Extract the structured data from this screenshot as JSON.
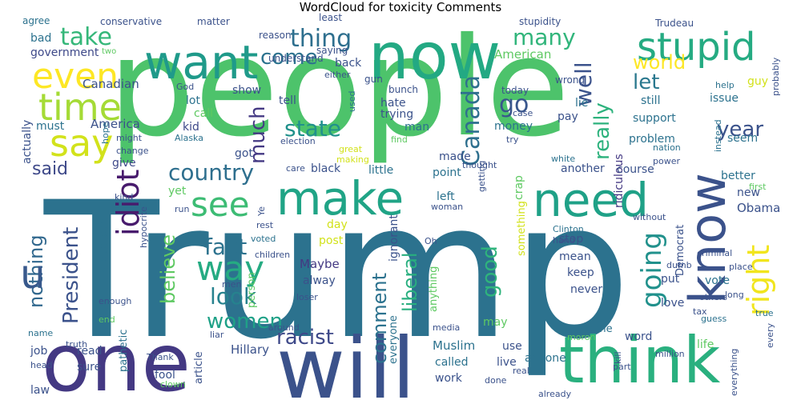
{
  "chart_data": {
    "type": "wordcloud",
    "title": "WordCloud for toxicity Comments",
    "background": "#ffffff",
    "words": [
      {
        "text": "people",
        "weight": 100,
        "color": "#4dc36b"
      },
      {
        "text": "Trump",
        "weight": 98,
        "color": "#2c728e"
      },
      {
        "text": "one",
        "weight": 62,
        "color": "#443983"
      },
      {
        "text": "will",
        "weight": 58,
        "color": "#3b528b"
      },
      {
        "text": "now",
        "weight": 50,
        "color": "#23a983"
      },
      {
        "text": "think",
        "weight": 44,
        "color": "#2ab07f"
      },
      {
        "text": "want",
        "weight": 40,
        "color": "#1f9a8a"
      },
      {
        "text": "make",
        "weight": 34,
        "color": "#20a486"
      },
      {
        "text": "need",
        "weight": 34,
        "color": "#1fa187"
      },
      {
        "text": "know",
        "weight": 34,
        "color": "#3b528b"
      },
      {
        "text": "stupid",
        "weight": 28,
        "color": "#25ab82"
      },
      {
        "text": "time",
        "weight": 26,
        "color": "#a5db36"
      },
      {
        "text": "say",
        "weight": 26,
        "color": "#d2e21b"
      },
      {
        "text": "even",
        "weight": 24,
        "color": "#fde725"
      },
      {
        "text": "see",
        "weight": 24,
        "color": "#3dbc74"
      },
      {
        "text": "way",
        "weight": 24,
        "color": "#25ab82"
      },
      {
        "text": "right",
        "weight": 22,
        "color": "#f1e51d"
      },
      {
        "text": "idiot",
        "weight": 22,
        "color": "#481b6d"
      },
      {
        "text": "going",
        "weight": 20,
        "color": "#21918c"
      },
      {
        "text": "take",
        "weight": 17,
        "color": "#35b779"
      },
      {
        "text": "thing",
        "weight": 17,
        "color": "#2e6f8e"
      },
      {
        "text": "come",
        "weight": 16,
        "color": "#2c728e"
      },
      {
        "text": "many",
        "weight": 16,
        "color": "#31b57b"
      },
      {
        "text": "world",
        "weight": 15,
        "color": "#fde725"
      },
      {
        "text": "Canada",
        "weight": 16,
        "color": "#2e6f8e"
      },
      {
        "text": "well",
        "weight": 16,
        "color": "#3b528b"
      },
      {
        "text": "go",
        "weight": 17,
        "color": "#39568c"
      },
      {
        "text": "let",
        "weight": 15,
        "color": "#2a788e"
      },
      {
        "text": "really",
        "weight": 15,
        "color": "#2db27d"
      },
      {
        "text": "state",
        "weight": 17,
        "color": "#21918c"
      },
      {
        "text": "much",
        "weight": 15,
        "color": "#443983"
      },
      {
        "text": "country",
        "weight": 17,
        "color": "#2e6f8e"
      },
      {
        "text": "year",
        "weight": 16,
        "color": "#3b528b"
      },
      {
        "text": "fact",
        "weight": 17,
        "color": "#2c728e"
      },
      {
        "text": "look",
        "weight": 17,
        "color": "#26828e"
      },
      {
        "text": "women",
        "weight": 16,
        "color": "#1fa187"
      },
      {
        "text": "President",
        "weight": 15,
        "color": "#3b528b"
      },
      {
        "text": "nothing",
        "weight": 14,
        "color": "#31688e"
      },
      {
        "text": "believe",
        "weight": 15,
        "color": "#5ec962"
      },
      {
        "text": "said",
        "weight": 13,
        "color": "#3e4989"
      },
      {
        "text": "racist",
        "weight": 15,
        "color": "#3e4989"
      },
      {
        "text": "comment",
        "weight": 14,
        "color": "#2c728e"
      },
      {
        "text": "liberal",
        "weight": 14,
        "color": "#29af7f"
      },
      {
        "text": "good",
        "weight": 15,
        "color": "#2fb47c"
      },
      {
        "text": "u",
        "weight": 30,
        "color": "#38598c"
      },
      {
        "text": "Canadian",
        "weight": 9,
        "color": "#3b528b"
      },
      {
        "text": "America",
        "weight": 9,
        "color": "#3b528b"
      },
      {
        "text": "American",
        "weight": 9,
        "color": "#5ec962"
      },
      {
        "text": "Hillary",
        "weight": 9,
        "color": "#3b528b"
      },
      {
        "text": "Muslim",
        "weight": 9,
        "color": "#2c728e"
      },
      {
        "text": "Obama",
        "weight": 9,
        "color": "#3b528b"
      },
      {
        "text": "Maybe",
        "weight": 9,
        "color": "#443983"
      },
      {
        "text": "ridiculous",
        "weight": 8,
        "color": "#443983"
      },
      {
        "text": "government",
        "weight": 8,
        "color": "#3e4989"
      },
      {
        "text": "actually",
        "weight": 8,
        "color": "#3b528b"
      },
      {
        "text": "bad",
        "weight": 8,
        "color": "#2c728e"
      },
      {
        "text": "must",
        "weight": 8,
        "color": "#2c728e"
      },
      {
        "text": "kid",
        "weight": 8,
        "color": "#3e4989"
      },
      {
        "text": "lot",
        "weight": 8,
        "color": "#2c728e"
      },
      {
        "text": "call",
        "weight": 8,
        "color": "#5ec962"
      },
      {
        "text": "back",
        "weight": 8,
        "color": "#3b528b"
      },
      {
        "text": "show",
        "weight": 8,
        "color": "#3b528b"
      },
      {
        "text": "tell",
        "weight": 8,
        "color": "#3b528b"
      },
      {
        "text": "hate",
        "weight": 8,
        "color": "#3b528b"
      },
      {
        "text": "trying",
        "weight": 8,
        "color": "#3b528b"
      },
      {
        "text": "man",
        "weight": 8,
        "color": "#2c728e"
      },
      {
        "text": "money",
        "weight": 8,
        "color": "#2c728e"
      },
      {
        "text": "pay",
        "weight": 8,
        "color": "#3b528b"
      },
      {
        "text": "lie",
        "weight": 8,
        "color": "#2c728e"
      },
      {
        "text": "still",
        "weight": 8,
        "color": "#2c728e"
      },
      {
        "text": "issue",
        "weight": 8,
        "color": "#2c728e"
      },
      {
        "text": "support",
        "weight": 8,
        "color": "#2c728e"
      },
      {
        "text": "problem",
        "weight": 8,
        "color": "#2c728e"
      },
      {
        "text": "seem",
        "weight": 8,
        "color": "#2c728e"
      },
      {
        "text": "guy",
        "weight": 8,
        "color": "#d2e21b"
      },
      {
        "text": "got",
        "weight": 8,
        "color": "#3b528b"
      },
      {
        "text": "give",
        "weight": 8,
        "color": "#3e4989"
      },
      {
        "text": "made",
        "weight": 8,
        "color": "#3b528b"
      },
      {
        "text": "crap",
        "weight": 8,
        "color": "#5ec962"
      },
      {
        "text": "black",
        "weight": 8,
        "color": "#3b528b"
      },
      {
        "text": "little",
        "weight": 8,
        "color": "#2c728e"
      },
      {
        "text": "point",
        "weight": 8,
        "color": "#2c728e"
      },
      {
        "text": "left",
        "weight": 8,
        "color": "#2c728e"
      },
      {
        "text": "another",
        "weight": 8,
        "color": "#3b528b"
      },
      {
        "text": "course",
        "weight": 8,
        "color": "#3b528b"
      },
      {
        "text": "better",
        "weight": 8,
        "color": "#2c728e"
      },
      {
        "text": "new",
        "weight": 8,
        "color": "#3b528b"
      },
      {
        "text": "yet",
        "weight": 8,
        "color": "#5ec962"
      },
      {
        "text": "day",
        "weight": 8,
        "color": "#d2e21b"
      },
      {
        "text": "post",
        "weight": 8,
        "color": "#d2e21b"
      },
      {
        "text": "alway",
        "weight": 8,
        "color": "#3b528b"
      },
      {
        "text": "ignorant",
        "weight": 8,
        "color": "#3b528b"
      },
      {
        "text": "something",
        "weight": 7,
        "color": "#d2e21b"
      },
      {
        "text": "stop",
        "weight": 8,
        "color": "#3b528b"
      },
      {
        "text": "mean",
        "weight": 8,
        "color": "#3b528b"
      },
      {
        "text": "keep",
        "weight": 8,
        "color": "#3b528b"
      },
      {
        "text": "never",
        "weight": 8,
        "color": "#3b528b"
      },
      {
        "text": "Democrat",
        "weight": 7,
        "color": "#3b528b"
      },
      {
        "text": "put",
        "weight": 8,
        "color": "#3b528b"
      },
      {
        "text": "vote",
        "weight": 8,
        "color": "#2c728e"
      },
      {
        "text": "love",
        "weight": 8,
        "color": "#3b528b"
      },
      {
        "text": "word",
        "weight": 8,
        "color": "#3b528b"
      },
      {
        "text": "life",
        "weight": 8,
        "color": "#5ec962"
      },
      {
        "text": "someone",
        "weight": 7,
        "color": "#2c728e"
      },
      {
        "text": "may",
        "weight": 8,
        "color": "#5ec962"
      },
      {
        "text": "use",
        "weight": 8,
        "color": "#3b528b"
      },
      {
        "text": "live",
        "weight": 8,
        "color": "#3b528b"
      },
      {
        "text": "anyone",
        "weight": 8,
        "color": "#2c728e"
      },
      {
        "text": "called",
        "weight": 8,
        "color": "#2c728e"
      },
      {
        "text": "work",
        "weight": 8,
        "color": "#3b528b"
      },
      {
        "text": "everyone",
        "weight": 7,
        "color": "#2c728e"
      },
      {
        "text": "anything",
        "weight": 7,
        "color": "#5ec962"
      },
      {
        "text": "fool",
        "weight": 8,
        "color": "#3b528b"
      },
      {
        "text": "article",
        "weight": 7,
        "color": "#3b528b"
      },
      {
        "text": "pathetic",
        "weight": 7,
        "color": "#2c728e"
      },
      {
        "text": "read",
        "weight": 8,
        "color": "#3b528b"
      },
      {
        "text": "sure",
        "weight": 8,
        "color": "#3b528b"
      },
      {
        "text": "job",
        "weight": 8,
        "color": "#3b528b"
      },
      {
        "text": "law",
        "weight": 8,
        "color": "#3b528b"
      },
      {
        "text": "Republican",
        "weight": 7,
        "color": "#2c728e"
      },
      {
        "text": "person",
        "weight": 7,
        "color": "#5ec962"
      },
      {
        "text": "agree",
        "weight": 6,
        "color": "#2c728e"
      },
      {
        "text": "conservative",
        "weight": 6,
        "color": "#3b528b"
      },
      {
        "text": "matter",
        "weight": 6,
        "color": "#3b528b"
      },
      {
        "text": "least",
        "weight": 6,
        "color": "#3b528b"
      },
      {
        "text": "stupidity",
        "weight": 6,
        "color": "#3b528b"
      },
      {
        "text": "Trudeau",
        "weight": 6,
        "color": "#3b528b"
      },
      {
        "text": "reason",
        "weight": 6,
        "color": "#3b528b"
      },
      {
        "text": "two",
        "weight": 5,
        "color": "#5ec962"
      },
      {
        "text": "saying",
        "weight": 6,
        "color": "#3b528b"
      },
      {
        "text": "understand",
        "weight": 6,
        "color": "#3b528b"
      },
      {
        "text": "either",
        "weight": 5,
        "color": "#3b528b"
      },
      {
        "text": "gun",
        "weight": 6,
        "color": "#3b528b"
      },
      {
        "text": "wrong",
        "weight": 6,
        "color": "#3b528b"
      },
      {
        "text": "God",
        "weight": 5,
        "color": "#3b528b"
      },
      {
        "text": "used",
        "weight": 5,
        "color": "#2c728e"
      },
      {
        "text": "bunch",
        "weight": 6,
        "color": "#3b528b"
      },
      {
        "text": "today",
        "weight": 6,
        "color": "#3b528b"
      },
      {
        "text": "case",
        "weight": 5,
        "color": "#3b528b"
      },
      {
        "text": "help",
        "weight": 5,
        "color": "#2c728e"
      },
      {
        "text": "probably",
        "weight": 5,
        "color": "#3b528b"
      },
      {
        "text": "might",
        "weight": 5,
        "color": "#3b528b"
      },
      {
        "text": "change",
        "weight": 5,
        "color": "#3b528b"
      },
      {
        "text": "Alaska",
        "weight": 5,
        "color": "#2c728e"
      },
      {
        "text": "election",
        "weight": 5,
        "color": "#3b528b"
      },
      {
        "text": "find",
        "weight": 5,
        "color": "#5ec962"
      },
      {
        "text": "try",
        "weight": 5,
        "color": "#3b528b"
      },
      {
        "text": "great",
        "weight": 5,
        "color": "#d2e21b"
      },
      {
        "text": "making",
        "weight": 5,
        "color": "#d2e21b"
      },
      {
        "text": "thought",
        "weight": 5,
        "color": "#3b528b"
      },
      {
        "text": "white",
        "weight": 5,
        "color": "#2c728e"
      },
      {
        "text": "nation",
        "weight": 5,
        "color": "#2c728e"
      },
      {
        "text": "power",
        "weight": 5,
        "color": "#3b528b"
      },
      {
        "text": "instead",
        "weight": 5,
        "color": "#2c728e"
      },
      {
        "text": "hope",
        "weight": 5,
        "color": "#2c728e"
      },
      {
        "text": "care",
        "weight": 5,
        "color": "#3b528b"
      },
      {
        "text": "getting",
        "weight": 5,
        "color": "#3b528b"
      },
      {
        "text": "first",
        "weight": 5,
        "color": "#5ec962"
      },
      {
        "text": "woman",
        "weight": 5,
        "color": "#3b528b"
      },
      {
        "text": "kind",
        "weight": 5,
        "color": "#3b528b"
      },
      {
        "text": "hypocrite",
        "weight": 5,
        "color": "#3b528b"
      },
      {
        "text": "run",
        "weight": 5,
        "color": "#3b528b"
      },
      {
        "text": "Ye",
        "weight": 5,
        "color": "#3b528b"
      },
      {
        "text": "rest",
        "weight": 5,
        "color": "#3b528b"
      },
      {
        "text": "voted",
        "weight": 5,
        "color": "#2c728e"
      },
      {
        "text": "without",
        "weight": 5,
        "color": "#3b528b"
      },
      {
        "text": "Oh",
        "weight": 5,
        "color": "#3b528b"
      },
      {
        "text": "Clinton",
        "weight": 5,
        "color": "#2c728e"
      },
      {
        "text": "hand",
        "weight": 5,
        "color": "#3b528b"
      },
      {
        "text": "children",
        "weight": 5,
        "color": "#3b528b"
      },
      {
        "text": "criminal",
        "weight": 5,
        "color": "#3b528b"
      },
      {
        "text": "dumb",
        "weight": 5,
        "color": "#3b528b"
      },
      {
        "text": "place",
        "weight": 5,
        "color": "#3b528b"
      },
      {
        "text": "men",
        "weight": 5,
        "color": "#3b528b"
      },
      {
        "text": "loser",
        "weight": 5,
        "color": "#3b528b"
      },
      {
        "text": "long",
        "weight": 5,
        "color": "#3b528b"
      },
      {
        "text": "others",
        "weight": 5,
        "color": "#3b528b"
      },
      {
        "text": "enough",
        "weight": 5,
        "color": "#3b528b"
      },
      {
        "text": "true",
        "weight": 5,
        "color": "#2c728e"
      },
      {
        "text": "end",
        "weight": 5,
        "color": "#5ec962"
      },
      {
        "text": "guess",
        "weight": 5,
        "color": "#2c728e"
      },
      {
        "text": "tax",
        "weight": 5,
        "color": "#3b528b"
      },
      {
        "text": "name",
        "weight": 5,
        "color": "#2c728e"
      },
      {
        "text": "liar",
        "weight": 5,
        "color": "#3b528b"
      },
      {
        "text": "around",
        "weight": 5,
        "color": "#3b528b"
      },
      {
        "text": "media",
        "weight": 5,
        "color": "#3b528b"
      },
      {
        "text": "moron",
        "weight": 5,
        "color": "#5ec962"
      },
      {
        "text": "every",
        "weight": 5,
        "color": "#3b528b"
      },
      {
        "text": "truth",
        "weight": 5,
        "color": "#3b528b"
      },
      {
        "text": "head",
        "weight": 5,
        "color": "#3b528b"
      },
      {
        "text": "Thank",
        "weight": 5,
        "color": "#3b528b"
      },
      {
        "text": "clown",
        "weight": 5,
        "color": "#5ec962"
      },
      {
        "text": "real",
        "weight": 5,
        "color": "#3b528b"
      },
      {
        "text": "done",
        "weight": 5,
        "color": "#3b528b"
      },
      {
        "text": "already",
        "weight": 5,
        "color": "#3b528b"
      },
      {
        "text": "part",
        "weight": 5,
        "color": "#3b528b"
      },
      {
        "text": "kill",
        "weight": 5,
        "color": "#3b528b"
      },
      {
        "text": "million",
        "weight": 5,
        "color": "#3b528b"
      },
      {
        "text": "everything",
        "weight": 5,
        "color": "#3b528b"
      }
    ]
  }
}
